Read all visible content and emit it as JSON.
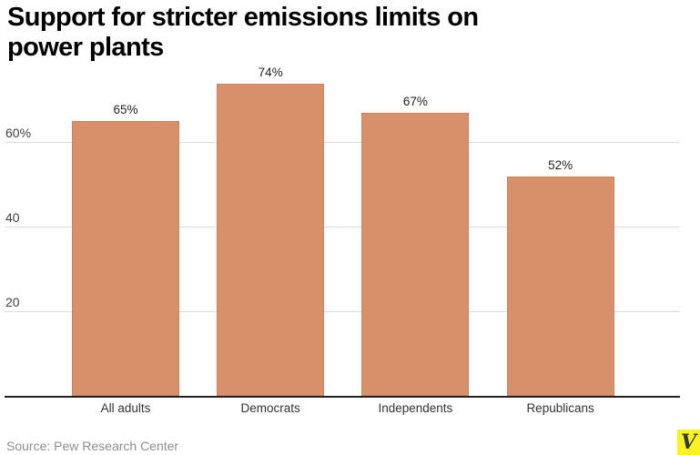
{
  "header": {
    "title_lines": [
      "Support for stricter emissions limits on",
      "power plants"
    ]
  },
  "chart_data": {
    "type": "bar",
    "title": "Support for stricter emissions limits on power plants",
    "categories": [
      "All adults",
      "Democrats",
      "Independents",
      "Republicans"
    ],
    "values": [
      65,
      74,
      67,
      52
    ],
    "value_labels": [
      "65%",
      "74%",
      "67%",
      "52%"
    ],
    "xlabel": "",
    "ylabel": "",
    "ylim": [
      0,
      80
    ],
    "yticks": [
      {
        "value": 20,
        "label": "20"
      },
      {
        "value": 40,
        "label": "40"
      },
      {
        "value": 60,
        "label": "60%"
      }
    ],
    "grid": true,
    "legend": "none",
    "source": "Pew Research Center"
  },
  "colors": {
    "bar_fill": "#d8906a",
    "bar_border": "#c9845d",
    "gridline": "#dcdcdc",
    "axis_line": "#222222",
    "logo_bg": "#fbf224",
    "logo_letter_color": "#34373e"
  },
  "footer": {
    "source_text": "Source: Pew Research Center",
    "logo_letter": "V"
  }
}
